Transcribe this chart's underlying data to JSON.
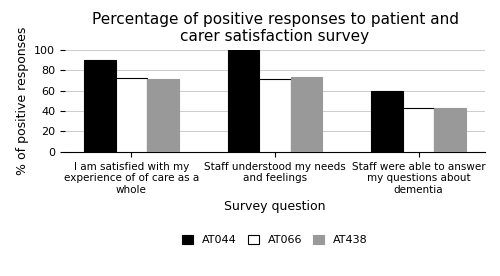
{
  "title": "Percentage of positive responses to patient and\ncarer satisfaction survey",
  "xlabel": "Survey question",
  "ylabel": "% of positive responses",
  "categories": [
    "I am satisfied with my\nexperience of of care as a\nwhole",
    "Staff understood my needs\nand feelings",
    "Staff were able to answer\nmy questions about\ndementia"
  ],
  "series": {
    "AT044": [
      90,
      100,
      60
    ],
    "AT066": [
      72,
      71,
      43
    ],
    "AT438": [
      71,
      73,
      43
    ]
  },
  "colors": {
    "AT044": "#000000",
    "AT066": "#ffffff",
    "AT438": "#999999"
  },
  "edgecolors": {
    "AT044": "#000000",
    "AT066": "#000000",
    "AT438": "#999999"
  },
  "ylim": [
    0,
    100
  ],
  "yticks": [
    0,
    20,
    40,
    60,
    80,
    100
  ],
  "bar_width": 0.22,
  "legend_labels": [
    "AT044",
    "AT066",
    "AT438"
  ],
  "title_fontsize": 11,
  "axis_label_fontsize": 9,
  "tick_fontsize": 8,
  "legend_fontsize": 8,
  "xtick_fontsize": 7.5
}
